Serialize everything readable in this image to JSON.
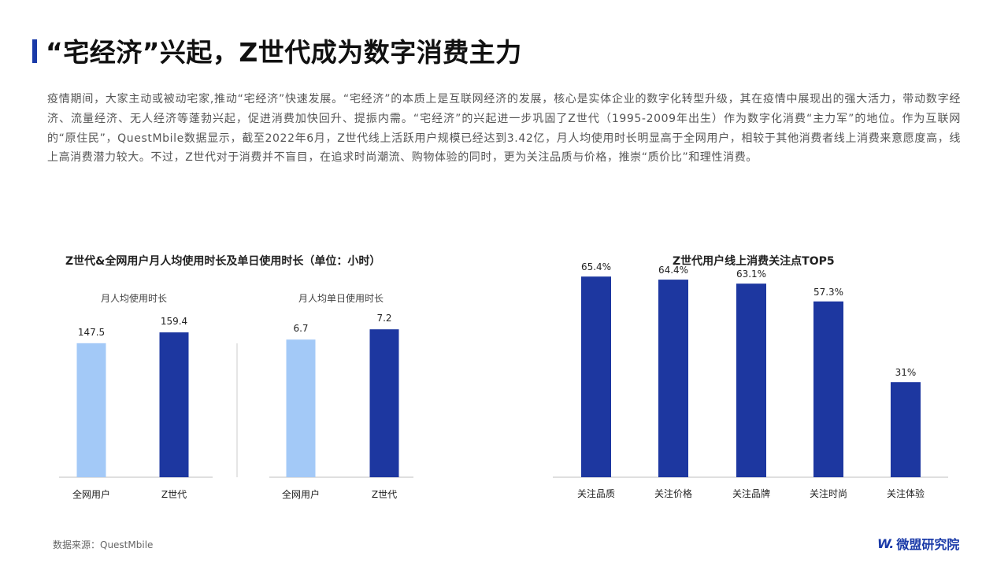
{
  "header": {
    "title": "“宅经济”兴起，Z世代成为数字消费主力"
  },
  "intro_text": "疫情期间，大家主动或被动宅家,推动“宅经济”快速发展。“宅经济”的本质上是互联网经济的发展，核心是实体企业的数字化转型升级，其在疫情中展现出的强大活力，带动数字经济、流量经济、无人经济等蓬勃兴起，促进消费加快回升、提振内需。“宅经济”的兴起进一步巩固了Z世代（1995-2009年出生）作为数字化消费“主力军”的地位。作为互联网的“原住民”，QuestMbile数据显示，截至2022年6月，Z世代线上活跃用户规模已经达到3.42亿，月人均使用时长明显高于全网用户，相较于其他消费者线上消费来意愿度高，线上高消费潜力较大。不过，Z世代对于消费并不盲目，在追求时尚潮流、购物体验的同时，更为关注品质与价格，推崇“质价比”和理性消费。",
  "colors": {
    "accent": "#1a3aa8",
    "light_bar": "#a3c9f7",
    "dark_bar": "#1d37a0"
  },
  "chart_data": [
    {
      "type": "bar",
      "title": "Z世代&全网用户月人均使用时长及单日使用时长（单位：小时）",
      "subtitle": "月人均使用时长",
      "categories": [
        "全网用户",
        "Z世代"
      ],
      "values": [
        147.5,
        159.4
      ],
      "ylim": [
        0,
        260
      ]
    },
    {
      "type": "bar",
      "subtitle": "月人均单日使用时长",
      "categories": [
        "全网用户",
        "Z世代"
      ],
      "values": [
        6.7,
        7.2
      ],
      "ylim": [
        0,
        11.5
      ]
    },
    {
      "type": "bar",
      "title": "Z世代用户线上消费关注点TOP5",
      "categories": [
        "关注品质",
        "关注价格",
        "关注品牌",
        "关注时尚",
        "关注体验"
      ],
      "values": [
        65.4,
        64.4,
        63.1,
        57.3,
        31
      ],
      "value_labels": [
        "65.4%",
        "64.4%",
        "63.1%",
        "57.3%",
        "31%"
      ],
      "ylim": [
        0,
        77
      ]
    }
  ],
  "footer": {
    "source": "数据来源：QuestMbile",
    "logo_mark": "W.",
    "logo_text": "微盟研究院"
  }
}
